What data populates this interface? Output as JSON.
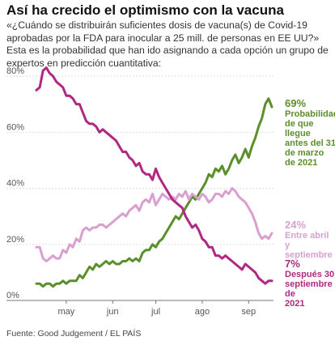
{
  "header": {
    "title": "Así ha crecido el optimismo con la vacuna",
    "subtitle": "«¿Cuándo se distribuirán suficientes dosis de vacuna(s) de Covid-19 aprobadas por la FDA para inocular a 25 mill. de personas en EE UU?» Esta es la probabilidad que han ido asignando a cada opción un grupo de expertos en predicción cuantitativa:"
  },
  "footer": {
    "source": "Fuente: Good Judgement / EL PAÍS"
  },
  "labels": [
    {
      "pct": "69%",
      "text": "Probabilidad\nde que llegue\nantes del 31\nde marzo\nde 2021",
      "color": "#5a8f2c"
    },
    {
      "pct": "24%",
      "text": "Entre abril y\nseptiembre",
      "color": "#d9a0cf"
    },
    {
      "pct": "7%",
      "text": "Después 30\nseptiembre de\n2021",
      "color": "#b0287f"
    }
  ],
  "chart_data": {
    "type": "line",
    "x_categories": [
      "may",
      "jun",
      "jul",
      "ago",
      "sep"
    ],
    "x": [
      0,
      1,
      2,
      3,
      4,
      5,
      6,
      7,
      8,
      9,
      10,
      11,
      12,
      13,
      14,
      15,
      16,
      17,
      18,
      19,
      20,
      21,
      22,
      23,
      24,
      25,
      26,
      27,
      28,
      29,
      30,
      31,
      32,
      33,
      34,
      35,
      36,
      37,
      38,
      39,
      40,
      41,
      42,
      43,
      44,
      45,
      46,
      47,
      48,
      49,
      50,
      51,
      52,
      53,
      54,
      55,
      56,
      57,
      58,
      59,
      60,
      61,
      62,
      63,
      64,
      65,
      66,
      67,
      68,
      69,
      70,
      71
    ],
    "xlim": [
      0,
      71
    ],
    "x_ticks": [
      {
        "label": "may",
        "x": 9
      },
      {
        "label": "jun",
        "x": 23
      },
      {
        "label": "jul",
        "x": 36
      },
      {
        "label": "ago",
        "x": 50
      },
      {
        "label": "sep",
        "x": 64
      }
    ],
    "ylim": [
      0,
      80
    ],
    "y_ticks": [
      "0%",
      "20%",
      "40%",
      "60%",
      "80%"
    ],
    "series": [
      {
        "name": "Probabilidad de que llegue antes del 31 de marzo de 2021",
        "color": "#5a8f2c",
        "values": [
          6,
          6,
          5,
          6,
          6,
          5,
          6,
          6,
          7,
          6,
          7,
          7,
          7,
          9,
          8,
          10,
          12,
          11,
          13,
          12,
          13,
          14,
          13,
          14,
          13,
          13,
          14,
          14,
          15,
          14,
          15,
          14,
          17,
          18,
          18,
          20,
          19,
          21,
          22,
          24,
          26,
          28,
          30,
          29,
          31,
          33,
          35,
          37,
          36,
          38,
          40,
          42,
          45,
          44,
          47,
          46,
          48,
          45,
          47,
          50,
          52,
          49,
          51,
          54,
          51,
          55,
          58,
          62,
          65,
          70,
          72,
          69
        ]
      },
      {
        "name": "Entre abril y septiembre",
        "color": "#d9a0cf",
        "values": [
          19,
          19,
          15,
          14,
          15,
          16,
          15,
          15,
          18,
          17,
          20,
          19,
          22,
          21,
          25,
          26,
          25,
          26,
          26,
          27,
          27,
          26,
          27,
          28,
          29,
          30,
          31,
          30,
          32,
          33,
          34,
          32,
          35,
          36,
          35,
          38,
          34,
          36,
          38,
          37,
          36,
          37,
          36,
          38,
          37,
          39,
          36,
          38,
          37,
          36,
          38,
          37,
          35,
          36,
          38,
          38,
          37,
          39,
          38,
          40,
          39,
          37,
          36,
          35,
          33,
          31,
          28,
          24,
          22,
          23,
          22,
          24
        ]
      },
      {
        "name": "Después 30 septiembre de 2021",
        "color": "#b0287f",
        "values": [
          75,
          76,
          82,
          83,
          81,
          80,
          78,
          77,
          76,
          73,
          73,
          72,
          70,
          70,
          67,
          64,
          63,
          63,
          62,
          60,
          61,
          60,
          59,
          58,
          57,
          55,
          53,
          53,
          51,
          50,
          48,
          49,
          46,
          45,
          45,
          43,
          47,
          44,
          42,
          40,
          38,
          36,
          35,
          34,
          33,
          30,
          28,
          26,
          27,
          25,
          22,
          21,
          19,
          19,
          16,
          16,
          15,
          16,
          15,
          14,
          13,
          12,
          11,
          13,
          12,
          11,
          10,
          8,
          7,
          6,
          7,
          7
        ]
      }
    ]
  }
}
